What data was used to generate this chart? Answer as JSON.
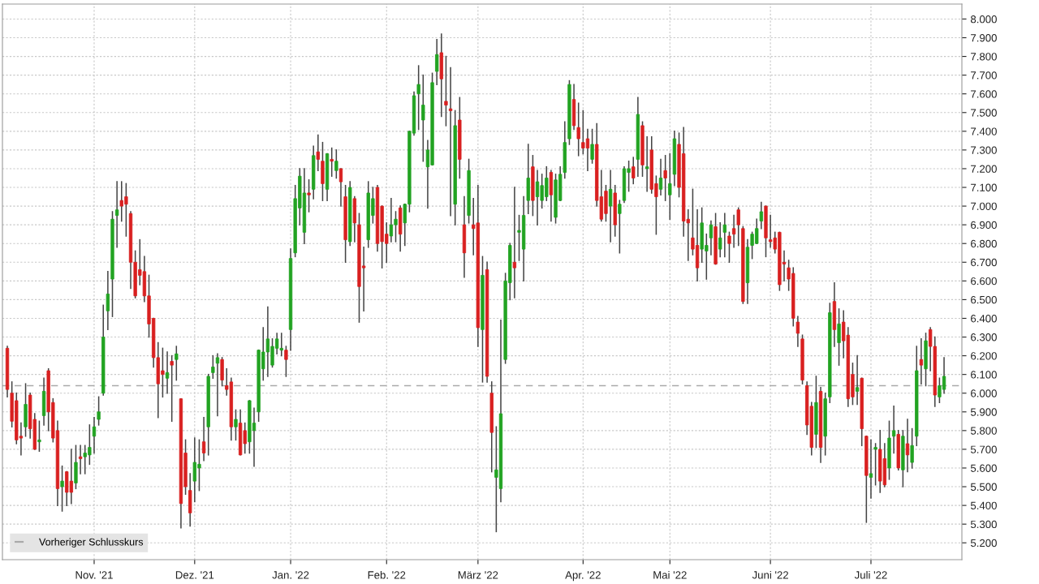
{
  "chart_data": {
    "type": "candlestick",
    "categories": [
      null,
      null,
      null,
      null,
      null,
      null,
      null,
      null,
      null,
      null,
      null,
      null,
      null,
      null,
      null,
      null,
      null,
      null,
      null,
      "Nov. '21",
      null,
      null,
      null,
      null,
      null,
      null,
      null,
      null,
      null,
      null,
      null,
      null,
      null,
      null,
      null,
      null,
      null,
      null,
      null,
      null,
      null,
      "Dez. '21",
      null,
      null,
      null,
      null,
      null,
      null,
      null,
      null,
      null,
      null,
      null,
      null,
      null,
      null,
      null,
      null,
      null,
      null,
      null,
      null,
      "Jan. '22",
      null,
      null,
      null,
      null,
      null,
      null,
      null,
      null,
      null,
      null,
      null,
      null,
      null,
      null,
      null,
      null,
      null,
      null,
      null,
      null,
      "Feb. '22",
      null,
      null,
      null,
      null,
      null,
      null,
      null,
      null,
      null,
      null,
      null,
      null,
      null,
      null,
      null,
      null,
      null,
      null,
      null,
      "März '22",
      null,
      null,
      null,
      null,
      null,
      null,
      null,
      null,
      null,
      null,
      null,
      null,
      null,
      null,
      null,
      null,
      null,
      null,
      null,
      null,
      null,
      null,
      "Apr. '22",
      null,
      null,
      null,
      null,
      null,
      null,
      null,
      null,
      null,
      null,
      null,
      null,
      null,
      null,
      null,
      null,
      null,
      null,
      "Mai '22",
      null,
      null,
      null,
      null,
      null,
      null,
      null,
      null,
      null,
      null,
      null,
      null,
      null,
      null,
      null,
      null,
      null,
      null,
      null,
      null,
      null,
      "Juni '22",
      null,
      null,
      null,
      null,
      null,
      null,
      null,
      null,
      null,
      null,
      null,
      null,
      null,
      null,
      null,
      null,
      null,
      null,
      null,
      null,
      null,
      "Juli '22",
      null,
      null,
      null,
      null,
      null,
      null,
      null,
      null,
      null,
      null,
      null,
      null,
      null,
      null,
      null,
      null
    ],
    "ohlc": [
      [
        6.24,
        6.25,
        5.98,
        6.02
      ],
      [
        6.0,
        6.06,
        5.82,
        5.85
      ],
      [
        5.96,
        6.0,
        5.73,
        5.75
      ],
      [
        5.77,
        5.84,
        5.67,
        5.76
      ],
      [
        5.82,
        6.05,
        5.77,
        5.94
      ],
      [
        5.99,
        6.0,
        5.76,
        5.81
      ],
      [
        5.86,
        5.89,
        5.7,
        5.7
      ],
      [
        5.74,
        5.85,
        5.69,
        5.75
      ],
      [
        5.88,
        6.08,
        5.83,
        6.01
      ],
      [
        6.12,
        6.13,
        5.8,
        5.9
      ],
      [
        5.95,
        5.97,
        5.74,
        5.76
      ],
      [
        5.8,
        5.85,
        5.4,
        5.49
      ],
      [
        5.5,
        5.61,
        5.37,
        5.53
      ],
      [
        5.58,
        5.58,
        5.4,
        5.47
      ],
      [
        5.53,
        5.7,
        5.41,
        5.47
      ],
      [
        5.52,
        5.72,
        5.49,
        5.63
      ],
      [
        5.66,
        5.72,
        5.57,
        5.65
      ],
      [
        5.66,
        5.72,
        5.57,
        5.68
      ],
      [
        5.67,
        5.83,
        5.62,
        5.71
      ],
      [
        5.77,
        5.87,
        5.68,
        5.82
      ],
      [
        5.86,
        5.98,
        5.83,
        5.9
      ],
      [
        6.0,
        6.47,
        5.99,
        6.3
      ],
      [
        6.44,
        6.65,
        6.34,
        6.53
      ],
      [
        6.61,
        6.97,
        6.41,
        6.93
      ],
      [
        6.95,
        7.13,
        6.78,
        6.98
      ],
      [
        7.03,
        7.13,
        6.92,
        7.0
      ],
      [
        7.05,
        7.12,
        6.84,
        7.01
      ],
      [
        6.96,
        6.97,
        6.56,
        6.7
      ],
      [
        6.7,
        6.76,
        6.51,
        6.52
      ],
      [
        6.66,
        6.82,
        6.58,
        6.63
      ],
      [
        6.65,
        6.73,
        6.49,
        6.52
      ],
      [
        6.52,
        6.63,
        6.3,
        6.37
      ],
      [
        6.4,
        6.4,
        6.14,
        6.19
      ],
      [
        6.19,
        6.27,
        5.87,
        6.05
      ],
      [
        6.12,
        6.24,
        5.98,
        6.1
      ],
      [
        6.08,
        6.22,
        6.0,
        6.11
      ],
      [
        6.17,
        6.2,
        5.85,
        6.15
      ],
      [
        6.18,
        6.25,
        6.07,
        6.21
      ],
      [
        5.97,
        5.97,
        5.28,
        5.41
      ],
      [
        5.68,
        5.75,
        5.46,
        5.5
      ],
      [
        5.48,
        5.57,
        5.29,
        5.36
      ],
      [
        5.53,
        5.76,
        5.42,
        5.63
      ],
      [
        5.6,
        5.75,
        5.48,
        5.62
      ],
      [
        5.74,
        5.87,
        5.64,
        5.68
      ],
      [
        5.82,
        6.1,
        5.67,
        6.09
      ],
      [
        6.11,
        6.2,
        6.08,
        6.14
      ],
      [
        6.16,
        6.21,
        5.88,
        6.19
      ],
      [
        6.18,
        6.19,
        6.04,
        6.07
      ],
      [
        6.04,
        6.13,
        5.99,
        6.02
      ],
      [
        6.06,
        6.08,
        5.75,
        5.82
      ],
      [
        5.82,
        5.91,
        5.75,
        5.86
      ],
      [
        5.84,
        5.91,
        5.67,
        5.67
      ],
      [
        5.8,
        5.84,
        5.68,
        5.73
      ],
      [
        5.74,
        5.96,
        5.68,
        5.96
      ],
      [
        5.8,
        5.92,
        5.61,
        5.84
      ],
      [
        5.9,
        6.23,
        5.85,
        6.23
      ],
      [
        6.13,
        6.35,
        6.07,
        6.22
      ],
      [
        6.22,
        6.46,
        6.09,
        6.29
      ],
      [
        6.15,
        6.29,
        6.14,
        6.25
      ],
      [
        6.24,
        6.32,
        6.21,
        6.29
      ],
      [
        6.23,
        6.32,
        6.2,
        6.24
      ],
      [
        6.23,
        6.25,
        6.09,
        6.18
      ],
      [
        6.34,
        6.77,
        6.23,
        6.72
      ],
      [
        6.75,
        7.11,
        6.73,
        7.04
      ],
      [
        6.99,
        7.2,
        6.9,
        7.16
      ],
      [
        6.86,
        7.2,
        6.8,
        7.07
      ],
      [
        7.07,
        7.14,
        6.97,
        7.06
      ],
      [
        7.09,
        7.32,
        7.04,
        7.27
      ],
      [
        7.29,
        7.38,
        7.19,
        7.25
      ],
      [
        7.24,
        7.34,
        7.03,
        7.12
      ],
      [
        7.09,
        7.28,
        7.03,
        7.28
      ],
      [
        7.25,
        7.31,
        7.16,
        7.24
      ],
      [
        7.19,
        7.3,
        7.15,
        7.24
      ],
      [
        7.2,
        7.2,
        7.0,
        7.13
      ],
      [
        7.05,
        7.11,
        6.7,
        6.82
      ],
      [
        6.81,
        7.13,
        6.79,
        7.1
      ],
      [
        7.04,
        7.05,
        6.81,
        6.91
      ],
      [
        6.9,
        6.96,
        6.38,
        6.57
      ],
      [
        6.68,
        6.78,
        6.44,
        6.67
      ],
      [
        6.82,
        7.13,
        6.78,
        7.07
      ],
      [
        6.95,
        7.1,
        6.91,
        7.04
      ],
      [
        7.1,
        7.11,
        6.76,
        6.8
      ],
      [
        7.0,
        7.0,
        6.67,
        6.81
      ],
      [
        6.85,
        6.91,
        6.7,
        6.8
      ],
      [
        6.84,
        7.04,
        6.81,
        6.9
      ],
      [
        6.9,
        6.97,
        6.81,
        6.93
      ],
      [
        6.99,
        7.0,
        6.76,
        6.85
      ],
      [
        6.91,
        7.01,
        6.79,
        7.01
      ],
      [
        7.01,
        7.4,
        6.97,
        7.4
      ],
      [
        7.39,
        7.61,
        7.38,
        7.59
      ],
      [
        7.6,
        7.75,
        7.41,
        7.65
      ],
      [
        7.46,
        7.7,
        7.24,
        7.54
      ],
      [
        7.21,
        7.35,
        6.99,
        7.3
      ],
      [
        7.22,
        7.71,
        7.22,
        7.66
      ],
      [
        7.72,
        7.89,
        7.65,
        7.81
      ],
      [
        7.82,
        7.92,
        7.48,
        7.68
      ],
      [
        7.56,
        7.8,
        7.43,
        7.54
      ],
      [
        7.52,
        7.74,
        6.95,
        7.51
      ],
      [
        7.01,
        7.51,
        6.9,
        7.43
      ],
      [
        7.46,
        7.58,
        7.15,
        7.25
      ],
      [
        6.9,
        7.05,
        6.62,
        6.75
      ],
      [
        6.95,
        7.25,
        6.91,
        7.19
      ],
      [
        6.9,
        7.04,
        6.74,
        6.88
      ],
      [
        6.91,
        7.11,
        6.25,
        6.35
      ],
      [
        6.34,
        6.73,
        6.06,
        6.63
      ],
      [
        6.66,
        6.7,
        6.06,
        6.09
      ],
      [
        6.0,
        6.06,
        5.58,
        5.79
      ],
      [
        5.55,
        5.82,
        5.26,
        5.59
      ],
      [
        5.49,
        6.39,
        5.42,
        5.89
      ],
      [
        6.18,
        6.64,
        6.16,
        6.6
      ],
      [
        6.59,
        6.8,
        6.5,
        6.79
      ],
      [
        6.7,
        7.1,
        6.51,
        6.67
      ],
      [
        6.86,
        6.95,
        6.71,
        6.87
      ],
      [
        6.77,
        7.05,
        6.6,
        6.95
      ],
      [
        7.03,
        7.33,
        6.96,
        7.15
      ],
      [
        7.21,
        7.27,
        6.95,
        7.03
      ],
      [
        7.05,
        7.19,
        6.9,
        7.13
      ],
      [
        7.03,
        7.17,
        6.99,
        7.11
      ],
      [
        7.05,
        7.21,
        7.03,
        7.15
      ],
      [
        7.18,
        7.19,
        6.92,
        7.06
      ],
      [
        6.94,
        7.17,
        6.91,
        7.14
      ],
      [
        7.03,
        7.21,
        7.03,
        7.17
      ],
      [
        7.18,
        7.45,
        7.15,
        7.34
      ],
      [
        7.36,
        7.67,
        7.33,
        7.65
      ],
      [
        7.57,
        7.65,
        7.41,
        7.43
      ],
      [
        7.42,
        7.55,
        7.27,
        7.36
      ],
      [
        7.34,
        7.51,
        7.28,
        7.31
      ],
      [
        7.36,
        7.41,
        7.19,
        7.31
      ],
      [
        7.25,
        7.41,
        7.23,
        7.33
      ],
      [
        7.33,
        7.44,
        7.0,
        7.03
      ],
      [
        7.05,
        7.19,
        6.92,
        6.93
      ],
      [
        7.08,
        7.11,
        6.92,
        6.96
      ],
      [
        7.0,
        7.19,
        6.81,
        7.09
      ],
      [
        7.07,
        7.11,
        6.84,
        6.9
      ],
      [
        6.96,
        7.03,
        6.75,
        7.01
      ],
      [
        7.03,
        7.21,
        7.02,
        7.2
      ],
      [
        7.18,
        7.24,
        7.08,
        7.2
      ],
      [
        7.21,
        7.26,
        7.12,
        7.15
      ],
      [
        7.25,
        7.58,
        7.16,
        7.49
      ],
      [
        7.43,
        7.45,
        7.16,
        7.22
      ],
      [
        7.2,
        7.37,
        7.08,
        7.21
      ],
      [
        7.3,
        7.37,
        7.07,
        7.09
      ],
      [
        7.12,
        7.16,
        6.85,
        7.05
      ],
      [
        7.09,
        7.25,
        7.06,
        7.15
      ],
      [
        7.19,
        7.27,
        7.03,
        7.15
      ],
      [
        7.06,
        7.28,
        6.93,
        7.12
      ],
      [
        7.17,
        7.4,
        7.11,
        7.36
      ],
      [
        7.33,
        7.39,
        7.05,
        7.1
      ],
      [
        7.28,
        7.42,
        6.84,
        6.92
      ],
      [
        6.93,
        6.98,
        6.71,
        6.91
      ],
      [
        6.83,
        7.09,
        6.74,
        6.77
      ],
      [
        6.79,
        6.98,
        6.6,
        6.67
      ],
      [
        6.77,
        6.99,
        6.7,
        6.91
      ],
      [
        6.76,
        6.85,
        6.61,
        6.79
      ],
      [
        6.83,
        6.92,
        6.74,
        6.9
      ],
      [
        6.89,
        6.96,
        6.69,
        6.69
      ],
      [
        6.77,
        6.91,
        6.73,
        6.83
      ],
      [
        6.86,
        6.96,
        6.73,
        6.9
      ],
      [
        6.84,
        6.86,
        6.7,
        6.8
      ],
      [
        6.88,
        6.95,
        6.78,
        6.85
      ],
      [
        6.98,
        6.99,
        6.79,
        6.9
      ],
      [
        6.88,
        6.89,
        6.48,
        6.49
      ],
      [
        6.59,
        6.82,
        6.48,
        6.78
      ],
      [
        6.79,
        6.86,
        6.72,
        6.85
      ],
      [
        6.8,
        6.93,
        6.8,
        6.88
      ],
      [
        6.92,
        7.02,
        6.88,
        6.97
      ],
      [
        7.0,
        7.0,
        6.73,
        6.83
      ],
      [
        6.82,
        6.95,
        6.78,
        6.81
      ],
      [
        6.83,
        6.86,
        6.75,
        6.77
      ],
      [
        6.86,
        6.86,
        6.55,
        6.58
      ],
      [
        6.7,
        6.76,
        6.6,
        6.69
      ],
      [
        6.67,
        6.71,
        6.55,
        6.61
      ],
      [
        6.64,
        6.67,
        6.36,
        6.4
      ],
      [
        6.38,
        6.41,
        6.25,
        6.32
      ],
      [
        6.29,
        6.31,
        6.05,
        6.07
      ],
      [
        6.04,
        6.06,
        5.78,
        5.83
      ],
      [
        5.93,
        5.95,
        5.67,
        5.71
      ],
      [
        5.78,
        6.09,
        5.71,
        5.95
      ],
      [
        6.01,
        6.03,
        5.63,
        5.71
      ],
      [
        5.77,
        6.0,
        5.67,
        5.97
      ],
      [
        5.98,
        6.48,
        5.95,
        6.43
      ],
      [
        6.49,
        6.59,
        6.25,
        6.34
      ],
      [
        6.27,
        6.45,
        6.15,
        6.37
      ],
      [
        6.38,
        6.44,
        6.19,
        6.28
      ],
      [
        6.31,
        6.35,
        5.93,
        5.97
      ],
      [
        6.1,
        6.16,
        5.94,
        5.98
      ],
      [
        6.01,
        6.2,
        5.94,
        6.03
      ],
      [
        6.08,
        6.08,
        5.72,
        5.81
      ],
      [
        5.77,
        5.77,
        5.31,
        5.56
      ],
      [
        5.55,
        5.75,
        5.44,
        5.57
      ],
      [
        5.7,
        5.73,
        5.51,
        5.71
      ],
      [
        5.7,
        5.8,
        5.47,
        5.53
      ],
      [
        5.65,
        5.73,
        5.5,
        5.51
      ],
      [
        5.6,
        5.85,
        5.54,
        5.76
      ],
      [
        5.77,
        5.93,
        5.68,
        5.8
      ],
      [
        5.78,
        5.8,
        5.59,
        5.6
      ],
      [
        5.59,
        5.8,
        5.5,
        5.77
      ],
      [
        5.73,
        5.86,
        5.58,
        5.67
      ],
      [
        5.63,
        5.81,
        5.6,
        5.72
      ],
      [
        5.77,
        6.25,
        5.72,
        6.12
      ],
      [
        6.18,
        6.29,
        6.05,
        6.15
      ],
      [
        6.13,
        6.32,
        6.04,
        6.28
      ],
      [
        6.34,
        6.35,
        6.12,
        6.25
      ],
      [
        6.25,
        6.3,
        5.93,
        5.99
      ],
      [
        5.98,
        6.08,
        5.95,
        6.04
      ],
      [
        6.02,
        6.19,
        6.0,
        6.09
      ]
    ],
    "colors": [
      "#d92020",
      "#d92020",
      "#d92020",
      "#d92020",
      "#22a322",
      "#d92020",
      "#d92020",
      "#22a322",
      "#22a322",
      "#d92020",
      "#d92020",
      "#d92020",
      "#22a322",
      "#d92020",
      "#d92020",
      "#22a322",
      "#d92020",
      "#22a322",
      "#22a322",
      "#22a322",
      "#22a322",
      "#22a322",
      "#22a322",
      "#22a322",
      "#22a322",
      "#d92020",
      "#d92020",
      "#d92020",
      "#d92020",
      "#d92020",
      "#d92020",
      "#d92020",
      "#d92020",
      "#d92020",
      "#d92020",
      "#22a322",
      "#d92020",
      "#22a322",
      "#d92020",
      "#d92020",
      "#d92020",
      "#22a322",
      "#22a322",
      "#d92020",
      "#22a322",
      "#22a322",
      "#22a322",
      "#d92020",
      "#d92020",
      "#d92020",
      "#22a322",
      "#d92020",
      "#d92020",
      "#22a322",
      "#22a322",
      "#22a322",
      "#22a322",
      "#22a322",
      "#22a322",
      "#22a322",
      "#22a322",
      "#d92020",
      "#22a322",
      "#22a322",
      "#22a322",
      "#22a322",
      "#d92020",
      "#22a322",
      "#d92020",
      "#d92020",
      "#22a322",
      "#d92020",
      "#22a322",
      "#d92020",
      "#d92020",
      "#22a322",
      "#d92020",
      "#d92020",
      "#d92020",
      "#22a322",
      "#22a322",
      "#d92020",
      "#d92020",
      "#d92020",
      "#22a322",
      "#22a322",
      "#d92020",
      "#22a322",
      "#22a322",
      "#22a322",
      "#22a322",
      "#22a322",
      "#22a322",
      "#22a322",
      "#22a322",
      "#d92020",
      "#d92020",
      "#d92020",
      "#22a322",
      "#d92020",
      "#d92020",
      "#22a322",
      "#d92020",
      "#d92020",
      "#22a322",
      "#d92020",
      "#d92020",
      "#22a322",
      "#22a322",
      "#22a322",
      "#22a322",
      "#d92020",
      "#22a322",
      "#22a322",
      "#22a322",
      "#d92020",
      "#22a322",
      "#22a322",
      "#22a322",
      "#d92020",
      "#22a322",
      "#22a322",
      "#22a322",
      "#22a322",
      "#d92020",
      "#d92020",
      "#d92020",
      "#d92020",
      "#22a322",
      "#d92020",
      "#d92020",
      "#d92020",
      "#22a322",
      "#d92020",
      "#22a322",
      "#22a322",
      "#22a322",
      "#d92020",
      "#22a322",
      "#d92020",
      "#22a322",
      "#d92020",
      "#d92020",
      "#22a322",
      "#d92020",
      "#22a322",
      "#22a322",
      "#d92020",
      "#d92020",
      "#d92020",
      "#d92020",
      "#d92020",
      "#22a322",
      "#22a322",
      "#22a322",
      "#d92020",
      "#22a322",
      "#22a322",
      "#d92020",
      "#d92020",
      "#d92020",
      "#d92020",
      "#22a322",
      "#22a322",
      "#22a322",
      "#22a322",
      "#d92020",
      "#d92020",
      "#d92020",
      "#d92020",
      "#d92020",
      "#d92020",
      "#d92020",
      "#d92020",
      "#d92020",
      "#d92020",
      "#d92020",
      "#22a322",
      "#d92020",
      "#22a322",
      "#22a322",
      "#d92020",
      "#22a322",
      "#d92020",
      "#d92020",
      "#d92020",
      "#22a322",
      "#d92020",
      "#d92020",
      "#22a322",
      "#22a322",
      "#d92020",
      "#d92020",
      "#22a322",
      "#22a322",
      "#d92020",
      "#22a322",
      "#d92020",
      "#22a322",
      "#22a322",
      "#d92020",
      "#22a322",
      "#d92020",
      "#d92020",
      "#22a322",
      "#22a322"
    ],
    "ylim": [
      5.11,
      8.08
    ],
    "yticks": [
      {
        "value": 5.2,
        "label": "5.200"
      },
      {
        "value": 5.3,
        "label": "5.300"
      },
      {
        "value": 5.4,
        "label": "5.400"
      },
      {
        "value": 5.5,
        "label": "5.500"
      },
      {
        "value": 5.6,
        "label": "5.600"
      },
      {
        "value": 5.7,
        "label": "5.700"
      },
      {
        "value": 5.8,
        "label": "5.800"
      },
      {
        "value": 5.9,
        "label": "5.900"
      },
      {
        "value": 6.0,
        "label": "6.000"
      },
      {
        "value": 6.1,
        "label": "6.100"
      },
      {
        "value": 6.2,
        "label": "6.200"
      },
      {
        "value": 6.3,
        "label": "6.300"
      },
      {
        "value": 6.4,
        "label": "6.400"
      },
      {
        "value": 6.5,
        "label": "6.500"
      },
      {
        "value": 6.6,
        "label": "6.600"
      },
      {
        "value": 6.7,
        "label": "6.700"
      },
      {
        "value": 6.8,
        "label": "6.800"
      },
      {
        "value": 6.9,
        "label": "6.900"
      },
      {
        "value": 7.0,
        "label": "7.000"
      },
      {
        "value": 7.1,
        "label": "7.100"
      },
      {
        "value": 7.2,
        "label": "7.200"
      },
      {
        "value": 7.3,
        "label": "7.300"
      },
      {
        "value": 7.4,
        "label": "7.400"
      },
      {
        "value": 7.5,
        "label": "7.500"
      },
      {
        "value": 7.6,
        "label": "7.600"
      },
      {
        "value": 7.7,
        "label": "7.700"
      },
      {
        "value": 7.8,
        "label": "7.800"
      },
      {
        "value": 7.9,
        "label": "7.900"
      },
      {
        "value": 8.0,
        "label": "8.000"
      }
    ],
    "ref_lines": [
      {
        "axis": "y",
        "value": 6.04,
        "label": "Vorheriger Schlusskurs",
        "color": "#aaaaaa",
        "line_style": "dashed"
      }
    ],
    "grid": true,
    "legend": "bottom left"
  }
}
